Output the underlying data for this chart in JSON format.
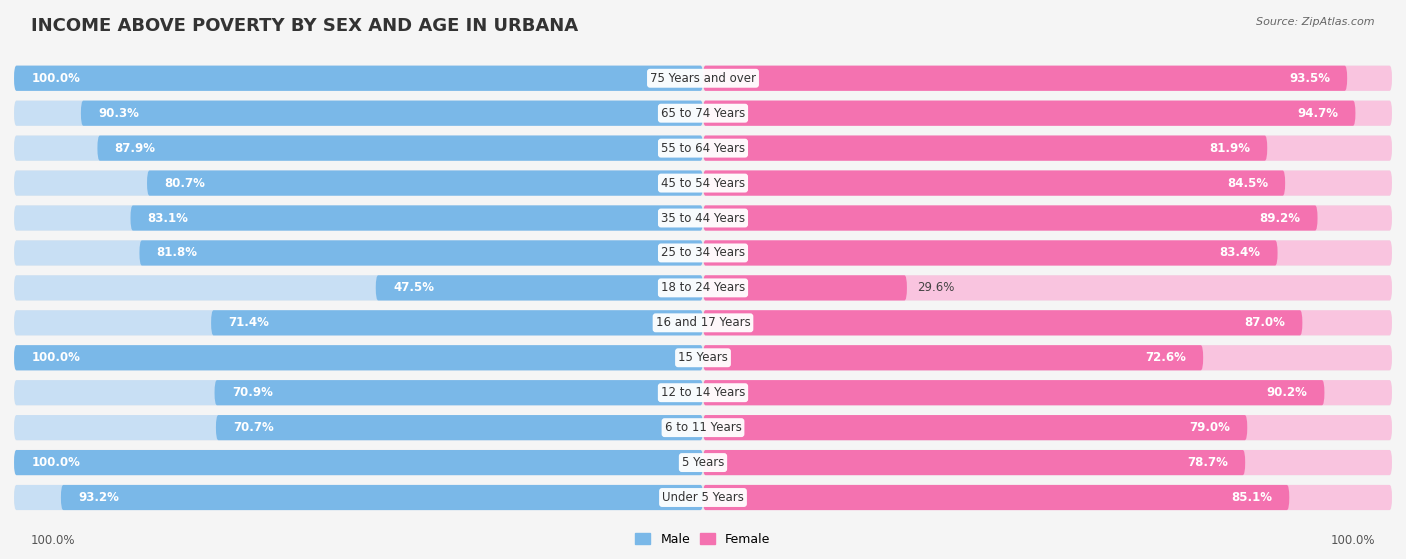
{
  "title": "INCOME ABOVE POVERTY BY SEX AND AGE IN URBANA",
  "source": "Source: ZipAtlas.com",
  "categories": [
    "Under 5 Years",
    "5 Years",
    "6 to 11 Years",
    "12 to 14 Years",
    "15 Years",
    "16 and 17 Years",
    "18 to 24 Years",
    "25 to 34 Years",
    "35 to 44 Years",
    "45 to 54 Years",
    "55 to 64 Years",
    "65 to 74 Years",
    "75 Years and over"
  ],
  "male_values": [
    93.2,
    100.0,
    70.7,
    70.9,
    100.0,
    71.4,
    47.5,
    81.8,
    83.1,
    80.7,
    87.9,
    90.3,
    100.0
  ],
  "female_values": [
    85.1,
    78.7,
    79.0,
    90.2,
    72.6,
    87.0,
    29.6,
    83.4,
    89.2,
    84.5,
    81.9,
    94.7,
    93.5
  ],
  "male_color": "#7ab8e8",
  "female_color": "#f472b0",
  "male_color_light": "#c8dff4",
  "female_color_light": "#f9c4df",
  "row_bg_color": "#ebebeb",
  "bg_color": "#f5f5f5",
  "title_fontsize": 13,
  "value_fontsize": 8.5,
  "source_fontsize": 8,
  "legend_fontsize": 9,
  "cat_label_fontsize": 8.5,
  "max_value": 100.0,
  "footer_value": "100.0%"
}
